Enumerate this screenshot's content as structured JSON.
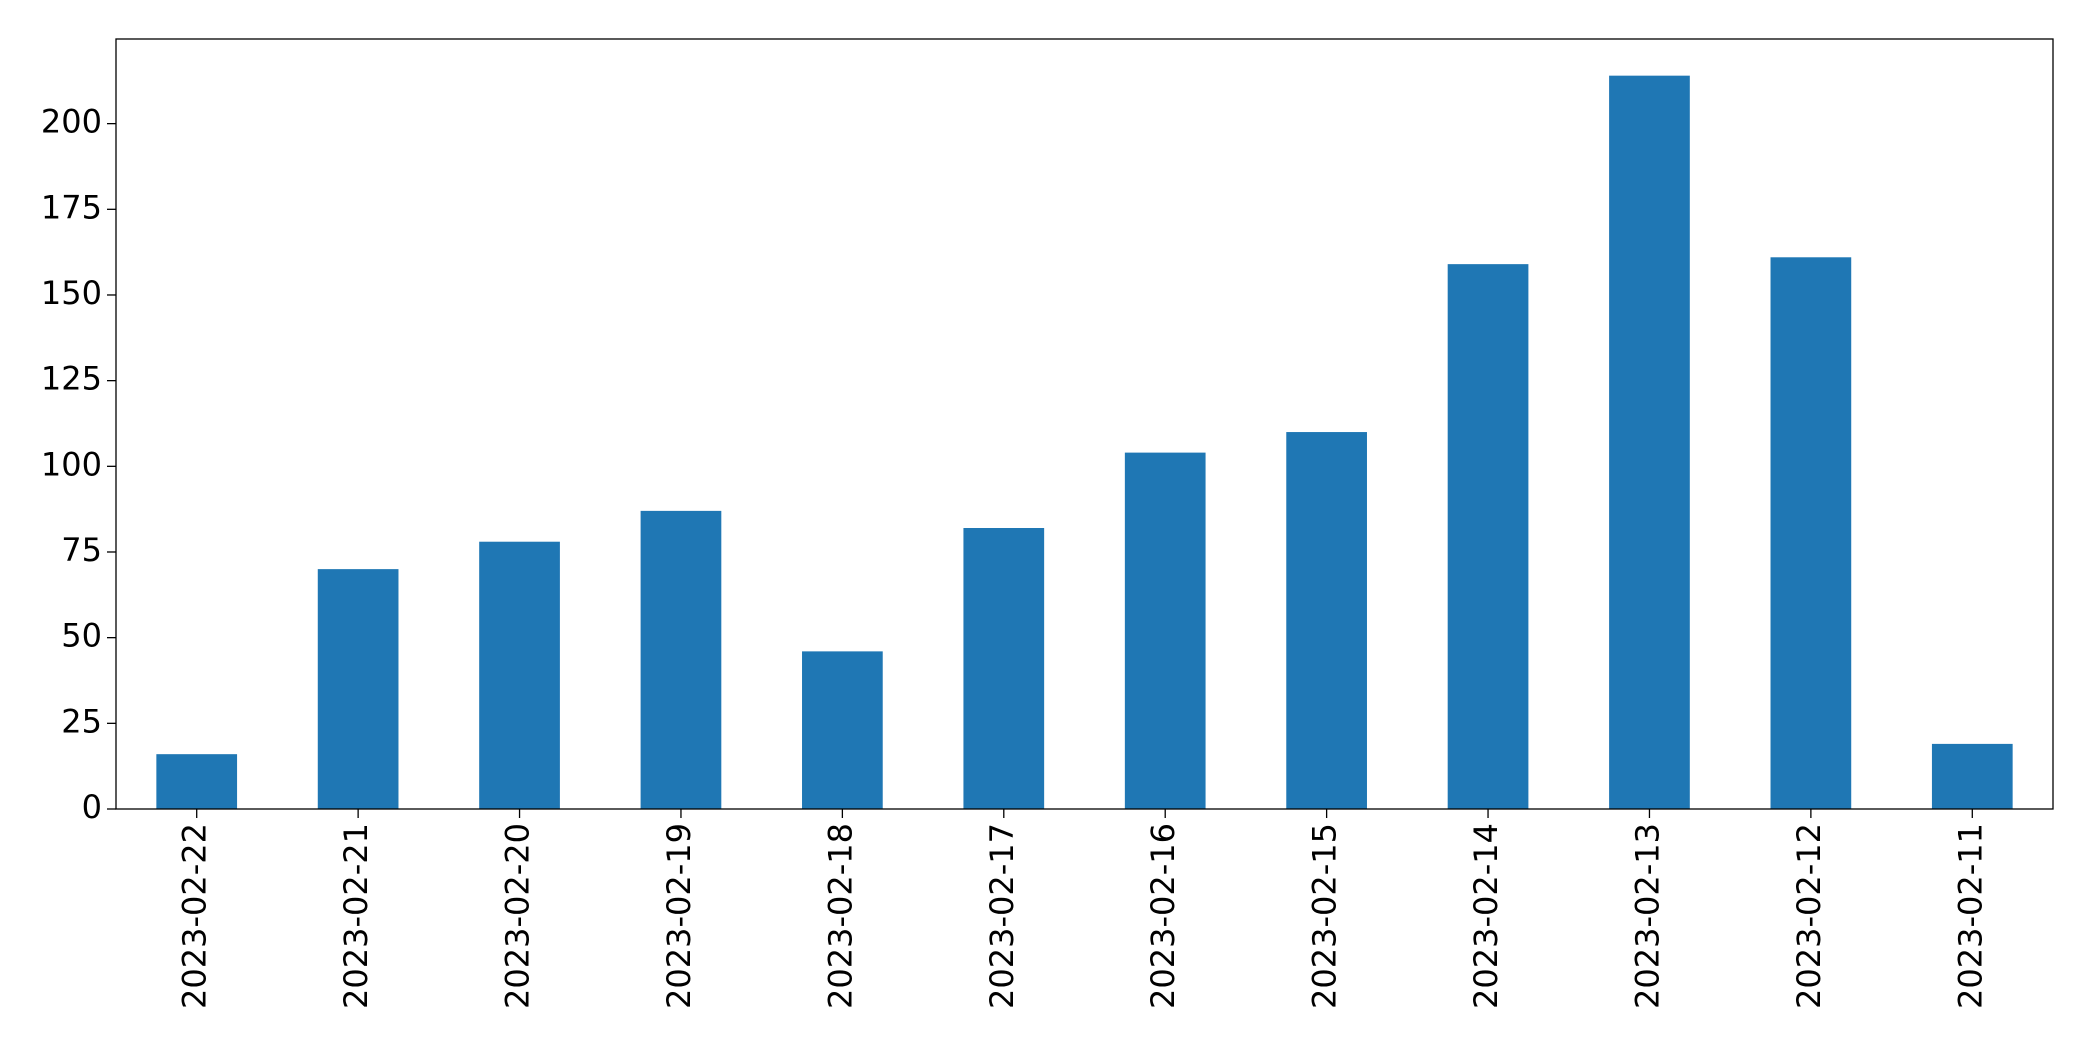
{
  "chart_data": {
    "type": "bar",
    "categories": [
      "2023-02-22",
      "2023-02-21",
      "2023-02-20",
      "2023-02-19",
      "2023-02-18",
      "2023-02-17",
      "2023-02-16",
      "2023-02-15",
      "2023-02-14",
      "2023-02-13",
      "2023-02-12",
      "2023-02-11"
    ],
    "values": [
      16,
      70,
      78,
      87,
      46,
      82,
      104,
      110,
      159,
      214,
      161,
      19
    ],
    "color": "#1f77b4",
    "ylim": [
      0,
      224.7
    ],
    "yticks": [
      0,
      25,
      50,
      75,
      100,
      125,
      150,
      175,
      200
    ],
    "grid": false
  }
}
